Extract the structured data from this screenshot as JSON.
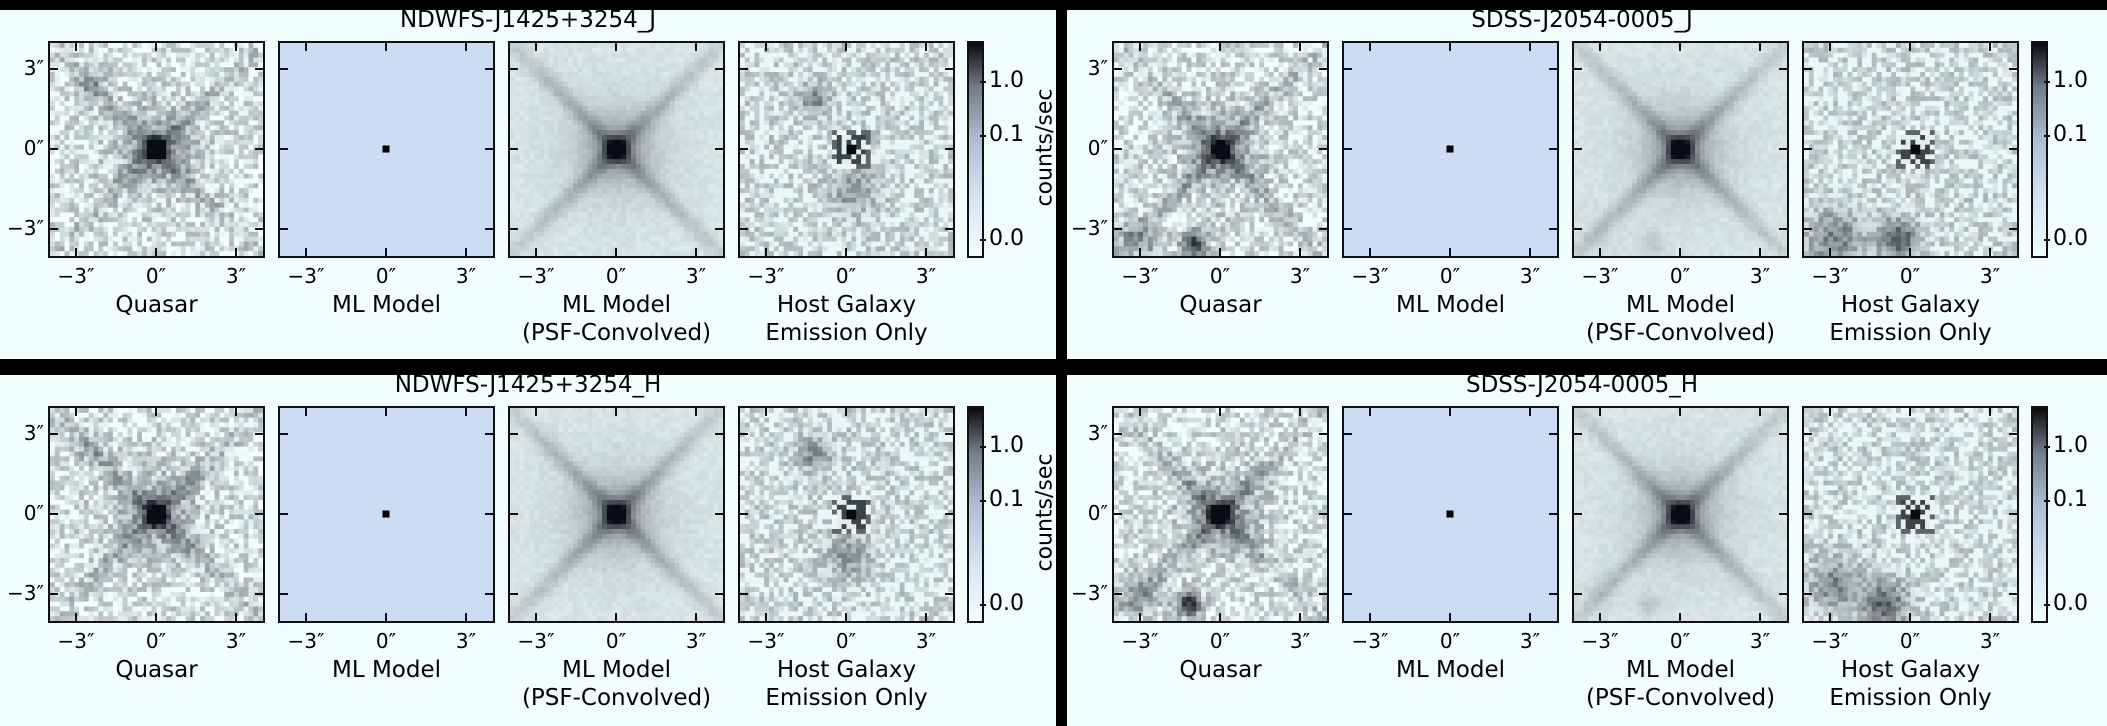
{
  "figure": {
    "quadrants": [
      {
        "title": "NDWFS-J1425+3254_J",
        "show_cbar_label": true
      },
      {
        "title": "SDSS-J2054-0005_J",
        "show_cbar_label": false
      },
      {
        "title": "NDWFS-J1425+3254_H",
        "show_cbar_label": true
      },
      {
        "title": "SDSS-J2054-0005_H",
        "show_cbar_label": false
      }
    ],
    "panel_labels": [
      {
        "line1": "Quasar",
        "line2": ""
      },
      {
        "line1": "ML Model",
        "line2": ""
      },
      {
        "line1": "ML Model",
        "line2": "(PSF-Convolved)"
      },
      {
        "line1": "Host Galaxy",
        "line2": "Emission Only"
      }
    ],
    "x_ticks": [
      "−3″",
      "0″",
      "3″"
    ],
    "y_ticks": [
      "3″",
      "0″",
      "−3″"
    ],
    "colorbar": {
      "label": "counts/sec",
      "ticks": [
        "1.0",
        "0.1",
        "0.0"
      ]
    },
    "colormap": {
      "dark": "#000000",
      "light": "#f0fefe",
      "model_bg": "#ccdcf4"
    }
  }
}
